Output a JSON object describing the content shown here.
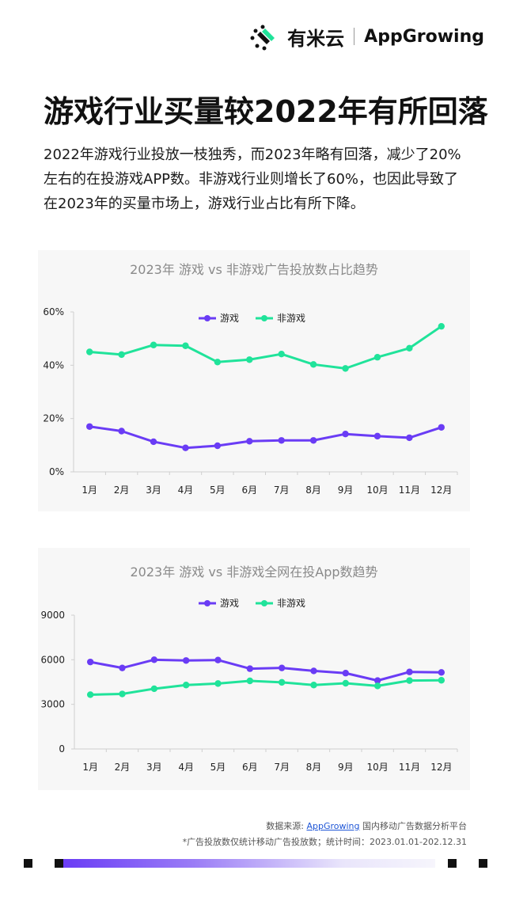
{
  "brand": {
    "name_cn": "有米云",
    "name_en": "AppGrowing",
    "colors": {
      "purple": "#6a3cf5",
      "green": "#20e39a"
    }
  },
  "header": {
    "title": "游戏行业买量较2022年有所回落",
    "description": "2022年游戏行业投放一枝独秀，而2023年略有回落，减少了20%左右的在投游戏APP数。非游戏行业则增长了60%，也因此导致了在2023年的买量市场上，游戏行业占比有所下降。"
  },
  "chart_data": [
    {
      "type": "line",
      "title": "2023年 游戏 vs 非游戏广告投放数占比趋势",
      "categories": [
        "1月",
        "2月",
        "3月",
        "4月",
        "5月",
        "6月",
        "7月",
        "8月",
        "9月",
        "10月",
        "11月",
        "12月"
      ],
      "series": [
        {
          "name": "游戏",
          "color": "#6a3cf5",
          "values": [
            17,
            15.3,
            11.3,
            9,
            9.8,
            11.5,
            11.8,
            11.8,
            14.2,
            13.4,
            12.8,
            16.7
          ]
        },
        {
          "name": "非游戏",
          "color": "#20e39a",
          "values": [
            45,
            44,
            47.6,
            47.3,
            41.2,
            42.1,
            44.2,
            40.3,
            38.8,
            43,
            46.4,
            54.6
          ]
        }
      ],
      "ylim": [
        0,
        60
      ],
      "yticks": [
        0,
        20,
        40,
        60
      ],
      "ytick_labels": [
        "0%",
        "20%",
        "40%",
        "60%"
      ],
      "legend": "top-center",
      "grid": false
    },
    {
      "type": "line",
      "title": "2023年 游戏 vs 非游戏全网在投App数趋势",
      "categories": [
        "1月",
        "2月",
        "3月",
        "4月",
        "5月",
        "6月",
        "7月",
        "8月",
        "9月",
        "10月",
        "11月",
        "12月"
      ],
      "series": [
        {
          "name": "游戏",
          "color": "#6a3cf5",
          "values": [
            5850,
            5450,
            6000,
            5950,
            5980,
            5400,
            5450,
            5250,
            5100,
            4600,
            5180,
            5150
          ]
        },
        {
          "name": "非游戏",
          "color": "#20e39a",
          "values": [
            3650,
            3700,
            4050,
            4300,
            4400,
            4580,
            4480,
            4300,
            4420,
            4240,
            4600,
            4620
          ]
        }
      ],
      "ylim": [
        0,
        9000
      ],
      "yticks": [
        0,
        3000,
        6000,
        9000
      ],
      "ytick_labels": [
        "0",
        "3000",
        "6000",
        "9000"
      ],
      "legend": "top-center",
      "grid": false
    }
  ],
  "footer": {
    "source_prefix": "数据来源: ",
    "source_link": "AppGrowing",
    "source_suffix": " 国内移动广告数据分析平台",
    "note": "*广告投放数仅统计移动广告投放数；统计时间：2023.01.01-202.12.31"
  }
}
